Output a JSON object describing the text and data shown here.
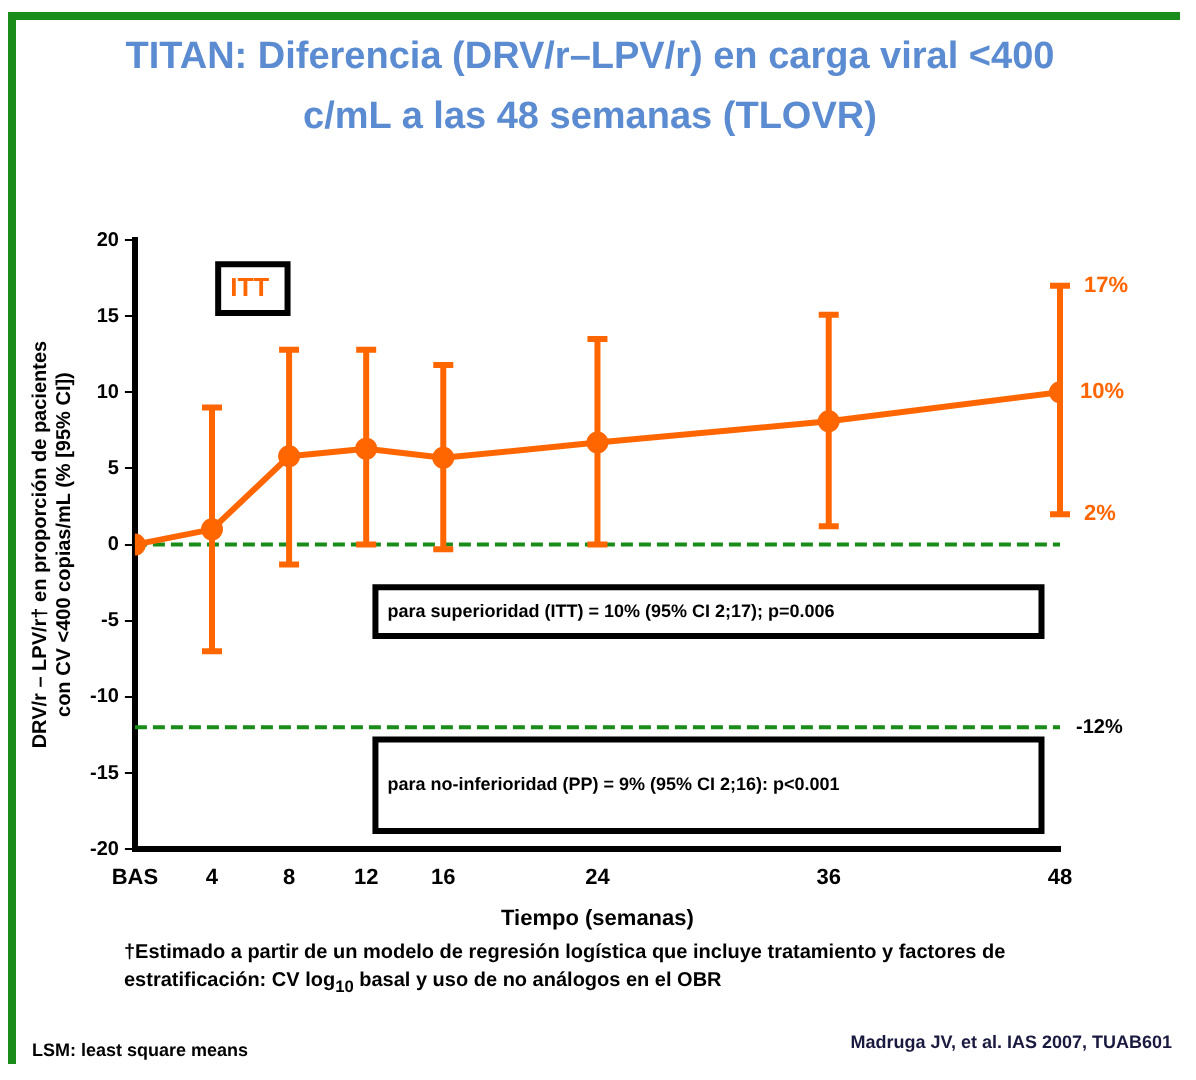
{
  "chart_data": {
    "type": "line",
    "title": "TITAN: Diferencia (DRV/r–LPV/r) en carga viral <400 c/mL a las 48 semanas (TLOVR)",
    "xlabel": "Tiempo (semanas)",
    "ylabel": "DRV/r – LPV/r† en proporción de pacientes con CV <400 copias/mL (% [95% CI])",
    "x": [
      0,
      4,
      8,
      12,
      16,
      24,
      36,
      48
    ],
    "series": [
      {
        "color": "#ff6600",
        "values": [
          0,
          1,
          5.8,
          6.3,
          5.7,
          6.7,
          8.1,
          10
        ],
        "errors": [
          null,
          [
            -7,
            9
          ],
          [
            -1.3,
            12.8
          ],
          [
            0,
            12.8
          ],
          [
            -0.3,
            11.8
          ],
          [
            0,
            13.5
          ],
          [
            1.2,
            15.1
          ],
          [
            2,
            17
          ]
        ],
        "value_labels": [
          null,
          null,
          null,
          null,
          null,
          null,
          null,
          "10%"
        ]
      }
    ],
    "xlim": [
      0,
      48
    ],
    "xticks": [
      {
        "value": 0,
        "label": "BAS"
      },
      4,
      8,
      12,
      16,
      24,
      36,
      48
    ],
    "ylim": [
      -20,
      20
    ],
    "yticks": [
      -20,
      -15,
      -10,
      -5,
      0,
      5,
      10,
      15,
      20
    ],
    "ref_lines": [
      {
        "axis": "y",
        "value": 0,
        "color": "#1a8c1a",
        "line_style": "dashed"
      },
      {
        "axis": "y",
        "value": -12,
        "label": "-12%",
        "color": "#1a8c1a",
        "line_style": "dashed"
      }
    ],
    "annotations": [
      "ITT",
      "para superioridad (ITT) = 10% (95% CI 2;17); p=0.006",
      "para no-inferioridad (PP) = 9% (95% CI 2;16): p<0.001",
      "†Estimado a partir de un modelo de regresión logística que incluye tratamiento y factores de estratificación: CV log$_{10}$ basal y uso de no análogos en el OBR",
      "LSM: least square means",
      "Madruga JV, et al. IAS 2007, TUAB601",
      {
        "text": "17%",
        "x": 48,
        "y": 17
      },
      {
        "text": "2%",
        "x": 48,
        "y": 2
      }
    ],
    "grid": false,
    "legend": false,
    "marker": "circle",
    "line_style": "solid"
  }
}
